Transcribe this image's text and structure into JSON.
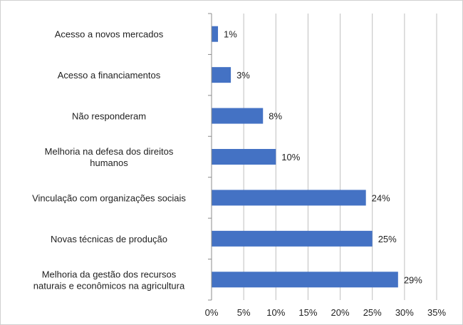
{
  "chart_data": {
    "type": "bar",
    "orientation": "horizontal",
    "categories": [
      [
        "Acesso a novos mercados"
      ],
      [
        "Acesso a financiamentos"
      ],
      [
        "Não responderam"
      ],
      [
        "Melhoria na defesa dos direitos",
        "humanos"
      ],
      [
        "Vinculação com organizações sociais"
      ],
      [
        "Novas técnicas de produção"
      ],
      [
        "Melhoria da gestão dos recursos",
        "naturais e econômicos na agricultura"
      ]
    ],
    "values": [
      1,
      3,
      8,
      10,
      24,
      25,
      29
    ],
    "value_labels": [
      "1%",
      "3%",
      "8%",
      "10%",
      "24%",
      "25%",
      "29%"
    ],
    "xlim": [
      0,
      35
    ],
    "xticks": [
      0,
      5,
      10,
      15,
      20,
      25,
      30,
      35
    ],
    "xtick_labels": [
      "0%",
      "5%",
      "10%",
      "15%",
      "20%",
      "25%",
      "30%",
      "35%"
    ],
    "title": "",
    "xlabel": "",
    "ylabel": "",
    "grid": "vertical",
    "legend": "none",
    "bar_color": "#4472C4",
    "grid_color": "#bfbfbf"
  }
}
